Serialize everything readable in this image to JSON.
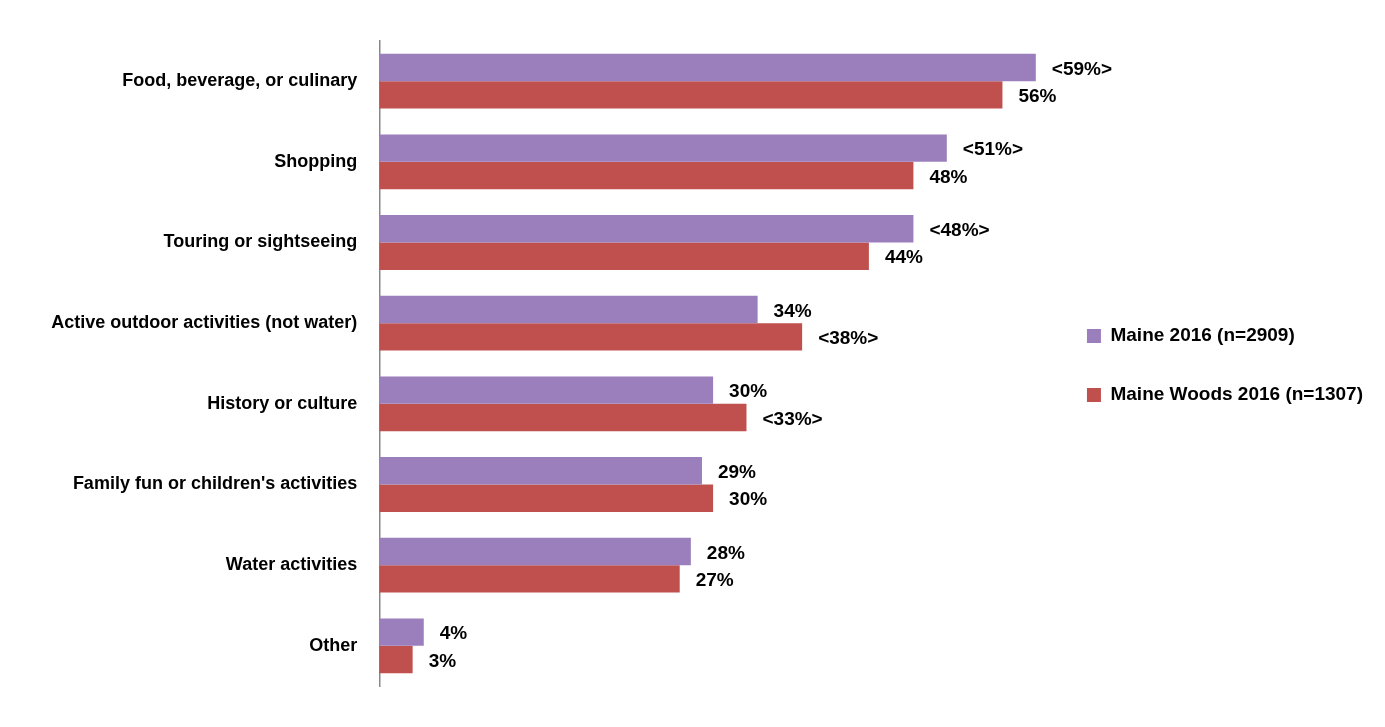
{
  "chart_data": {
    "type": "bar",
    "orientation": "horizontal",
    "categories": [
      "Food, beverage, or culinary",
      "Shopping",
      "Touring or sightseeing",
      "Active outdoor activities (not water)",
      "History or culture",
      "Family fun or children's activities",
      "Water activities",
      "Other"
    ],
    "series": [
      {
        "name": "Maine 2016 (n=2909)",
        "color": "#9b7fbc",
        "values": [
          59,
          51,
          48,
          34,
          30,
          29,
          28,
          4
        ],
        "value_labels": [
          "<59%>",
          "<51%>",
          "<48%>",
          "34%",
          "30%",
          "29%",
          "28%",
          "4%"
        ]
      },
      {
        "name": "Maine Woods 2016 (n=1307)",
        "color": "#c0504d",
        "values": [
          56,
          48,
          44,
          38,
          33,
          30,
          27,
          3
        ],
        "value_labels": [
          "56%",
          "48%",
          "44%",
          "<38%>",
          "<33%>",
          "30%",
          "27%",
          "3%"
        ]
      }
    ],
    "legend": "right"
  }
}
